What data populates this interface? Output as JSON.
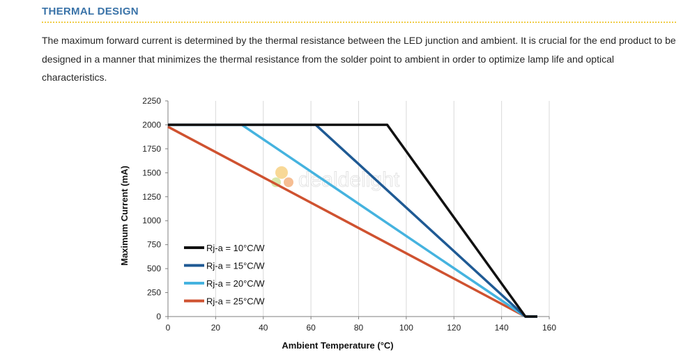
{
  "section": {
    "heading": "THERMAL DESIGN",
    "heading_color": "#3a73a8",
    "rule_color": "#f0cc45",
    "paragraph": "The maximum forward current is determined by the thermal resistance between the LED junction and ambient. It is crucial for the end product to be designed in a manner that minimizes the thermal resistance from the solder point to ambient in order to optimize lamp life and optical characteristics."
  },
  "watermark": {
    "text": "dealdelight"
  },
  "chart_data": {
    "type": "line",
    "title": "",
    "xlabel": "Ambient Temperature (°C)",
    "ylabel": "Maximum Current (mA)",
    "xlim": [
      0,
      160
    ],
    "ylim": [
      0,
      2250
    ],
    "x_ticks": [
      0,
      20,
      40,
      60,
      80,
      100,
      120,
      140,
      160
    ],
    "y_ticks": [
      0,
      250,
      500,
      750,
      1000,
      1250,
      1500,
      1750,
      2000,
      2250
    ],
    "x_tick_labels": [
      "0",
      "20",
      "40",
      "60",
      "80",
      "100",
      "120",
      "140",
      "160"
    ],
    "y_tick_labels": [
      "0",
      "250",
      "500",
      "750",
      "1000",
      "1250",
      "1500",
      "1750",
      "2000",
      "2250"
    ],
    "grid": "vertical",
    "legend_position": "bottom-left",
    "series": [
      {
        "name": "Rj-a = 10°C/W",
        "color": "#111111",
        "points": [
          [
            0,
            2000
          ],
          [
            92,
            2000
          ],
          [
            150,
            0
          ],
          [
            155,
            0
          ]
        ]
      },
      {
        "name": "Rj-a = 15°C/W",
        "color": "#1f5a94",
        "points": [
          [
            0,
            2000
          ],
          [
            62,
            2000
          ],
          [
            150,
            0
          ],
          [
            155,
            0
          ]
        ]
      },
      {
        "name": "Rj-a = 20°C/W",
        "color": "#45b3df",
        "points": [
          [
            0,
            2000
          ],
          [
            31,
            2000
          ],
          [
            150,
            0
          ],
          [
            155,
            0
          ]
        ]
      },
      {
        "name": "Rj-a = 25°C/W",
        "color": "#cf5230",
        "points": [
          [
            0,
            1980
          ],
          [
            150,
            0
          ],
          [
            155,
            0
          ]
        ]
      }
    ]
  }
}
